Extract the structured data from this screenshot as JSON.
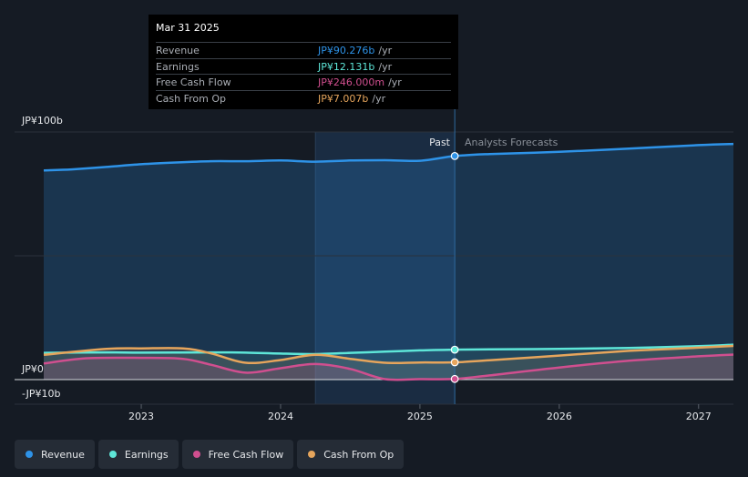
{
  "colors": {
    "revenue": "#2e93e8",
    "earnings": "#5ee6d8",
    "free_cash_flow": "#d04f8f",
    "cash_from_op": "#e6a55c"
  },
  "tooltip": {
    "date": "Mar 31 2025",
    "rows": [
      {
        "label": "Revenue",
        "value": "JP¥90.276b",
        "unit": "/yr"
      },
      {
        "label": "Earnings",
        "value": "JP¥12.131b",
        "unit": "/yr"
      },
      {
        "label": "Free Cash Flow",
        "value": "JP¥246.000m",
        "unit": "/yr"
      },
      {
        "label": "Cash From Op",
        "value": "JP¥7.007b",
        "unit": "/yr"
      }
    ]
  },
  "legend": [
    {
      "label": "Revenue"
    },
    {
      "label": "Earnings"
    },
    {
      "label": "Free Cash Flow"
    },
    {
      "label": "Cash From Op"
    }
  ],
  "chart_data": {
    "type": "line",
    "title": "",
    "y_axis_labels": [
      "JP¥100b",
      "JP¥0",
      "-JP¥10b"
    ],
    "ylim": [
      -10,
      100
    ],
    "xlim": [
      2022.3,
      2027.25
    ],
    "x_ticks": [
      2023,
      2024,
      2025,
      2026,
      2027
    ],
    "x_tick_labels": [
      "2023",
      "2024",
      "2025",
      "2026",
      "2027"
    ],
    "past_label": "Past",
    "forecast_label": "Analysts Forecasts",
    "split_x": 2025.25,
    "highlight_start": 2024.25,
    "series": [
      {
        "name": "Revenue",
        "key": "revenue",
        "x": [
          2022.3,
          2022.5,
          2022.75,
          2023.0,
          2023.25,
          2023.5,
          2023.75,
          2024.0,
          2024.25,
          2024.5,
          2024.75,
          2025.0,
          2025.25,
          2025.5,
          2026.0,
          2026.5,
          2027.0,
          2027.25
        ],
        "values": [
          84.5,
          84.9,
          85.9,
          87.0,
          87.7,
          88.2,
          88.2,
          88.5,
          88.0,
          88.5,
          88.6,
          88.4,
          90.3,
          91.1,
          92.0,
          93.3,
          94.7,
          95.2
        ]
      },
      {
        "name": "Earnings",
        "key": "earnings",
        "x": [
          2022.3,
          2022.75,
          2023.0,
          2023.5,
          2023.75,
          2024.0,
          2024.25,
          2024.5,
          2024.75,
          2025.0,
          2025.25,
          2025.5,
          2026.0,
          2026.5,
          2027.0,
          2027.25
        ],
        "values": [
          10.8,
          11.0,
          10.9,
          11.0,
          10.9,
          10.5,
          10.3,
          10.8,
          11.3,
          11.8,
          12.1,
          12.2,
          12.4,
          12.8,
          13.5,
          14.1
        ]
      },
      {
        "name": "Free Cash Flow",
        "key": "free_cash_flow",
        "x": [
          2022.3,
          2022.6,
          2023.0,
          2023.3,
          2023.5,
          2023.75,
          2024.0,
          2024.25,
          2024.5,
          2024.75,
          2025.0,
          2025.25,
          2025.5,
          2026.0,
          2026.5,
          2027.0,
          2027.25
        ],
        "values": [
          6.5,
          8.6,
          8.8,
          8.4,
          6.0,
          2.8,
          4.6,
          6.3,
          4.3,
          0.2,
          0.2,
          0.25,
          1.7,
          4.9,
          7.6,
          9.4,
          10.1
        ]
      },
      {
        "name": "Cash From Op",
        "key": "cash_from_op",
        "x": [
          2022.3,
          2022.75,
          2023.0,
          2023.3,
          2023.5,
          2023.75,
          2024.0,
          2024.25,
          2024.5,
          2024.75,
          2025.0,
          2025.25,
          2025.5,
          2026.0,
          2026.5,
          2027.0,
          2027.25
        ],
        "values": [
          10.0,
          12.4,
          12.6,
          12.6,
          10.6,
          6.8,
          7.9,
          10.0,
          8.4,
          6.8,
          6.9,
          7.0,
          7.8,
          9.7,
          11.6,
          12.9,
          13.6
        ]
      }
    ]
  }
}
